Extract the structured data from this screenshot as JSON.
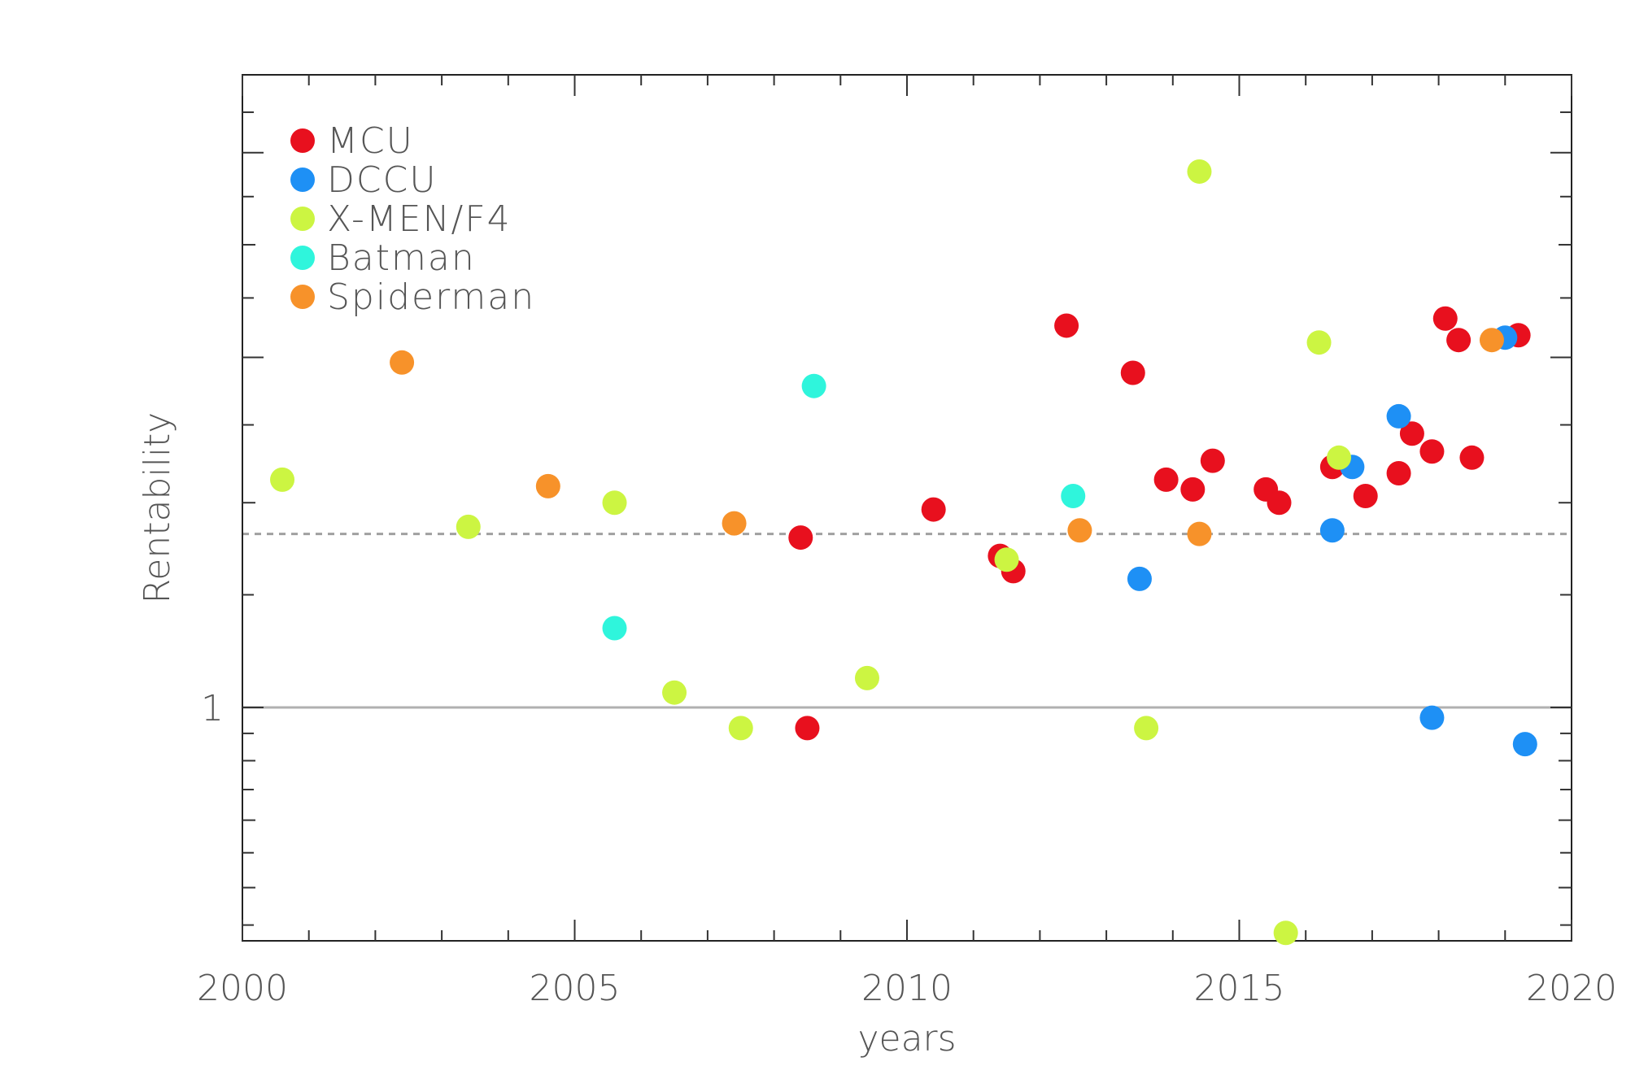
{
  "chart_data": {
    "type": "scatter",
    "xlabel": "years",
    "ylabel": "Rentability",
    "xlim": [
      2000,
      2020
    ],
    "ylim": [
      0.63,
      3.5
    ],
    "yscale": "log",
    "x_ticks": [
      "2000",
      "2005",
      "2010",
      "2015",
      "2020"
    ],
    "y_tick_labels": [
      "1"
    ],
    "legend_position": "top-left",
    "reference_lines": [
      {
        "y": 1.0,
        "style": "solid",
        "color": "#b0b0b0"
      },
      {
        "y": 1.41,
        "style": "dashed",
        "color": "#a0a0a0"
      }
    ],
    "series": [
      {
        "name": "MCU",
        "color": "#e8101e",
        "points": [
          [
            2008.4,
            1.4
          ],
          [
            2008.5,
            0.96
          ],
          [
            2010.4,
            1.48
          ],
          [
            2011.4,
            1.35
          ],
          [
            2011.6,
            1.31
          ],
          [
            2012.4,
            2.13
          ],
          [
            2013.4,
            1.94
          ],
          [
            2013.9,
            1.57
          ],
          [
            2014.3,
            1.54
          ],
          [
            2014.6,
            1.63
          ],
          [
            2015.4,
            1.54
          ],
          [
            2015.6,
            1.5
          ],
          [
            2016.4,
            1.61
          ],
          [
            2016.9,
            1.52
          ],
          [
            2017.4,
            1.59
          ],
          [
            2017.6,
            1.72
          ],
          [
            2017.9,
            1.66
          ],
          [
            2018.1,
            2.16
          ],
          [
            2018.3,
            2.07
          ],
          [
            2018.5,
            1.64
          ],
          [
            2019.2,
            2.09
          ]
        ]
      },
      {
        "name": "DCCU",
        "color": "#1e90f5",
        "points": [
          [
            2013.5,
            1.29
          ],
          [
            2016.4,
            1.42
          ],
          [
            2016.7,
            1.61
          ],
          [
            2017.4,
            1.78
          ],
          [
            2017.9,
            0.98
          ],
          [
            2019.0,
            2.08
          ],
          [
            2019.3,
            0.93
          ]
        ]
      },
      {
        "name": "X-MEN/F4",
        "color": "#ccf542",
        "points": [
          [
            2000.6,
            1.57
          ],
          [
            2003.4,
            1.43
          ],
          [
            2005.6,
            1.5
          ],
          [
            2006.5,
            1.03
          ],
          [
            2007.5,
            0.96
          ],
          [
            2009.4,
            1.06
          ],
          [
            2011.5,
            1.34
          ],
          [
            2013.6,
            0.96
          ],
          [
            2014.4,
            2.89
          ],
          [
            2015.7,
            0.64
          ],
          [
            2016.2,
            2.06
          ],
          [
            2016.5,
            1.64
          ]
        ]
      },
      {
        "name": "Batman",
        "color": "#2ff5dc",
        "points": [
          [
            2005.6,
            1.17
          ],
          [
            2008.6,
            1.89
          ],
          [
            2012.5,
            1.52
          ]
        ]
      },
      {
        "name": "Spiderman",
        "color": "#f7922a",
        "points": [
          [
            2002.4,
            1.98
          ],
          [
            2004.6,
            1.55
          ],
          [
            2007.4,
            1.44
          ],
          [
            2012.6,
            1.42
          ],
          [
            2014.4,
            1.41
          ],
          [
            2018.8,
            2.07
          ]
        ]
      }
    ]
  }
}
